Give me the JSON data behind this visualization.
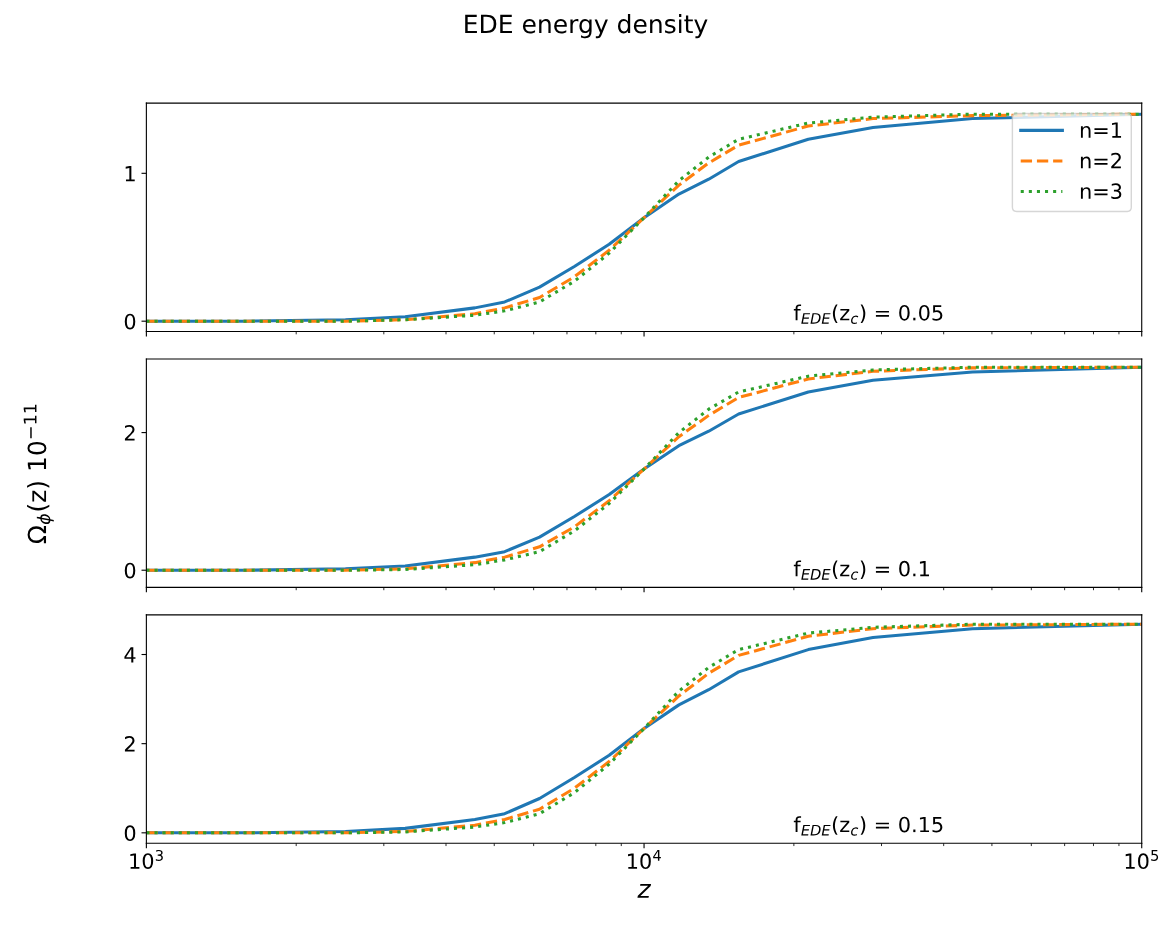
{
  "chart_data": [
    {
      "type": "line",
      "title": "EDE energy density",
      "log": "x",
      "xlim": [
        1000,
        100000
      ],
      "ylim": [
        -0.07,
        1.475
      ],
      "yticks": [
        0,
        1
      ],
      "tick_labels": "y",
      "legend": "top right",
      "grid": false,
      "x": [
        1000,
        1585,
        2512,
        3311,
        4571,
        5248,
        6166,
        7244,
        8511,
        10000,
        11750,
        13490,
        15490,
        21380,
        28840,
        45710,
        100000
      ],
      "annotations": [
        "f$_{EDE}$(z$_{c}$) = 0.05"
      ],
      "series": [
        {
          "name": "n=1",
          "color": "#1f77b4",
          "line_style": "solid",
          "values": [
            0,
            0,
            0.01,
            0.03,
            0.09,
            0.13,
            0.23,
            0.37,
            0.52,
            0.7,
            0.86,
            0.96,
            1.08,
            1.23,
            1.31,
            1.37,
            1.4
          ]
        },
        {
          "name": "n=2",
          "color": "#ff7f0e",
          "line_style": "dashed",
          "values": [
            0,
            0,
            0,
            0.01,
            0.05,
            0.09,
            0.16,
            0.3,
            0.48,
            0.7,
            0.92,
            1.07,
            1.19,
            1.32,
            1.37,
            1.39,
            1.4
          ]
        },
        {
          "name": "n=3",
          "color": "#2ca02c",
          "line_style": "dotted",
          "values": [
            0,
            0,
            0,
            0.01,
            0.04,
            0.07,
            0.13,
            0.27,
            0.46,
            0.7,
            0.95,
            1.11,
            1.23,
            1.34,
            1.38,
            1.4,
            1.4
          ]
        }
      ]
    },
    {
      "type": "line",
      "log": "x",
      "xlim": [
        1000,
        100000
      ],
      "ylim": [
        -0.25,
        3.07
      ],
      "yticks": [
        0,
        2
      ],
      "tick_labels": "y",
      "grid": false,
      "ylabel": "Ω$_{ϕ}$(z) 10$^{−11}$",
      "x": [
        1000,
        1585,
        2512,
        3311,
        4571,
        5248,
        6166,
        7244,
        8511,
        10000,
        11750,
        13490,
        15490,
        21380,
        28840,
        45710,
        100000
      ],
      "annotations": [
        "f$_{EDE}$(z$_{c}$) = 0.1"
      ],
      "series": [
        {
          "color": "#1f77b4",
          "line_style": "solid",
          "values": [
            0,
            0,
            0.02,
            0.06,
            0.19,
            0.27,
            0.48,
            0.78,
            1.1,
            1.47,
            1.81,
            2.02,
            2.27,
            2.59,
            2.76,
            2.88,
            2.95
          ]
        },
        {
          "color": "#ff7f0e",
          "line_style": "dashed",
          "values": [
            0,
            0,
            0,
            0.02,
            0.11,
            0.19,
            0.34,
            0.63,
            1.01,
            1.47,
            1.94,
            2.25,
            2.51,
            2.78,
            2.89,
            2.94,
            2.95
          ]
        },
        {
          "color": "#2ca02c",
          "line_style": "dotted",
          "values": [
            0,
            0,
            0,
            0.01,
            0.08,
            0.15,
            0.27,
            0.57,
            0.97,
            1.47,
            2.0,
            2.34,
            2.59,
            2.82,
            2.91,
            2.95,
            2.95
          ]
        }
      ]
    },
    {
      "type": "line",
      "log": "x",
      "xlim": [
        1000,
        100000
      ],
      "ylim": [
        -0.235,
        4.89
      ],
      "yticks": [
        0,
        2,
        4
      ],
      "grid": false,
      "xlabel": "z",
      "xticks": [
        {
          "value": 1000,
          "label": "10$^{3}$"
        },
        {
          "value": 10000,
          "label": "10$^{4}$"
        },
        {
          "value": 100000,
          "label": "10$^{5}$"
        }
      ],
      "x": [
        1000,
        1585,
        2512,
        3311,
        4571,
        5248,
        6166,
        7244,
        8511,
        10000,
        11750,
        13490,
        15490,
        21380,
        28840,
        45710,
        100000
      ],
      "annotations": [
        "f$_{EDE}$(z$_{c}$) = 0.15"
      ],
      "series": [
        {
          "color": "#1f77b4",
          "line_style": "solid",
          "values": [
            0,
            0,
            0.03,
            0.1,
            0.3,
            0.43,
            0.77,
            1.24,
            1.74,
            2.34,
            2.87,
            3.21,
            3.61,
            4.11,
            4.38,
            4.58,
            4.68
          ]
        },
        {
          "color": "#ff7f0e",
          "line_style": "dashed",
          "values": [
            0,
            0,
            0,
            0.03,
            0.17,
            0.3,
            0.53,
            1.0,
            1.6,
            2.34,
            3.07,
            3.58,
            3.98,
            4.41,
            4.58,
            4.66,
            4.68
          ]
        },
        {
          "color": "#2ca02c",
          "line_style": "dotted",
          "values": [
            0,
            0,
            0,
            0.02,
            0.13,
            0.23,
            0.43,
            0.9,
            1.54,
            2.34,
            3.18,
            3.71,
            4.11,
            4.48,
            4.61,
            4.68,
            4.68
          ]
        }
      ]
    }
  ]
}
